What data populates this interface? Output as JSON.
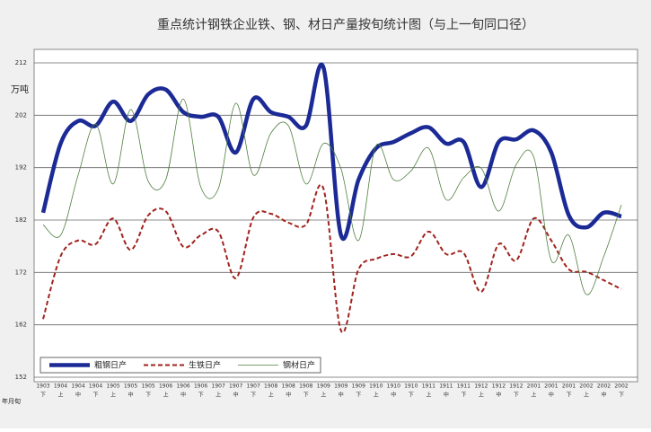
{
  "chart_data": {
    "type": "line",
    "title": "重点统计钢铁企业铁、钢、材日产量按旬统计图（与上一旬同口径）",
    "y_label": "万吨",
    "x_label": "年月旬",
    "categories": [
      "1903",
      "1904",
      "1904",
      "1904",
      "1905",
      "1905",
      "1905",
      "1906",
      "1906",
      "1906",
      "1907",
      "1907",
      "1907",
      "1908",
      "1908",
      "1908",
      "1909",
      "1909",
      "1909",
      "1910",
      "1910",
      "1910",
      "1911",
      "1911",
      "1911",
      "1912",
      "1912",
      "1912",
      "2001",
      "2001",
      "2001",
      "2002",
      "2002",
      "2002"
    ],
    "periods": [
      "下",
      "上",
      "中",
      "下",
      "上",
      "中",
      "下",
      "上",
      "中",
      "下",
      "上",
      "中",
      "下",
      "上",
      "中",
      "下",
      "上",
      "中",
      "下",
      "上",
      "中",
      "下",
      "上",
      "中",
      "下",
      "上",
      "中",
      "下",
      "上",
      "中",
      "下",
      "上",
      "中",
      "下"
    ],
    "ylim": [
      152,
      212
    ],
    "yticks": [
      152,
      162,
      172,
      182,
      192,
      202,
      212
    ],
    "grid": true,
    "legend": "bottom-left",
    "series": [
      {
        "name": "粗钢日产",
        "color": "#1c2a96",
        "style": "thick",
        "values": [
          183.4,
          196.6,
          200.9,
          200,
          204.6,
          200.9,
          206,
          206.9,
          202.6,
          201.7,
          201.7,
          194.9,
          205.1,
          202.6,
          201.7,
          200,
          211.1,
          179.1,
          189.7,
          195.7,
          196.9,
          198.6,
          199.7,
          196.6,
          196.9,
          188.3,
          196.9,
          197.4,
          199.1,
          194.9,
          182.9,
          180.6,
          183.4,
          182.7
        ]
      },
      {
        "name": "生铁日产",
        "color": "#a0231e",
        "style": "dashed",
        "values": [
          163.1,
          175.1,
          178.1,
          177.4,
          182.3,
          176.3,
          182.9,
          183.7,
          176.9,
          179.1,
          179.8,
          170.9,
          182.5,
          183.2,
          181.5,
          181.1,
          188,
          160.9,
          172.6,
          174.6,
          175.5,
          175.1,
          179.8,
          175.5,
          175.7,
          168.3,
          177.4,
          174.3,
          182.3,
          178.1,
          172.6,
          172.1,
          170.5,
          168.8
        ]
      },
      {
        "name": "钢材日产",
        "color": "#4f7f3f",
        "style": "thin",
        "values": [
          181.1,
          179.1,
          190.6,
          200.3,
          188.9,
          203.1,
          189.4,
          189.7,
          205.1,
          188.3,
          188,
          204.3,
          190.6,
          198.6,
          200,
          188.9,
          196.6,
          191.8,
          178.1,
          196.2,
          189.7,
          191.4,
          195.7,
          185.9,
          190.1,
          191.9,
          183.7,
          192.6,
          194,
          174.3,
          179.1,
          167.8,
          175.1,
          184.9
        ]
      }
    ]
  }
}
